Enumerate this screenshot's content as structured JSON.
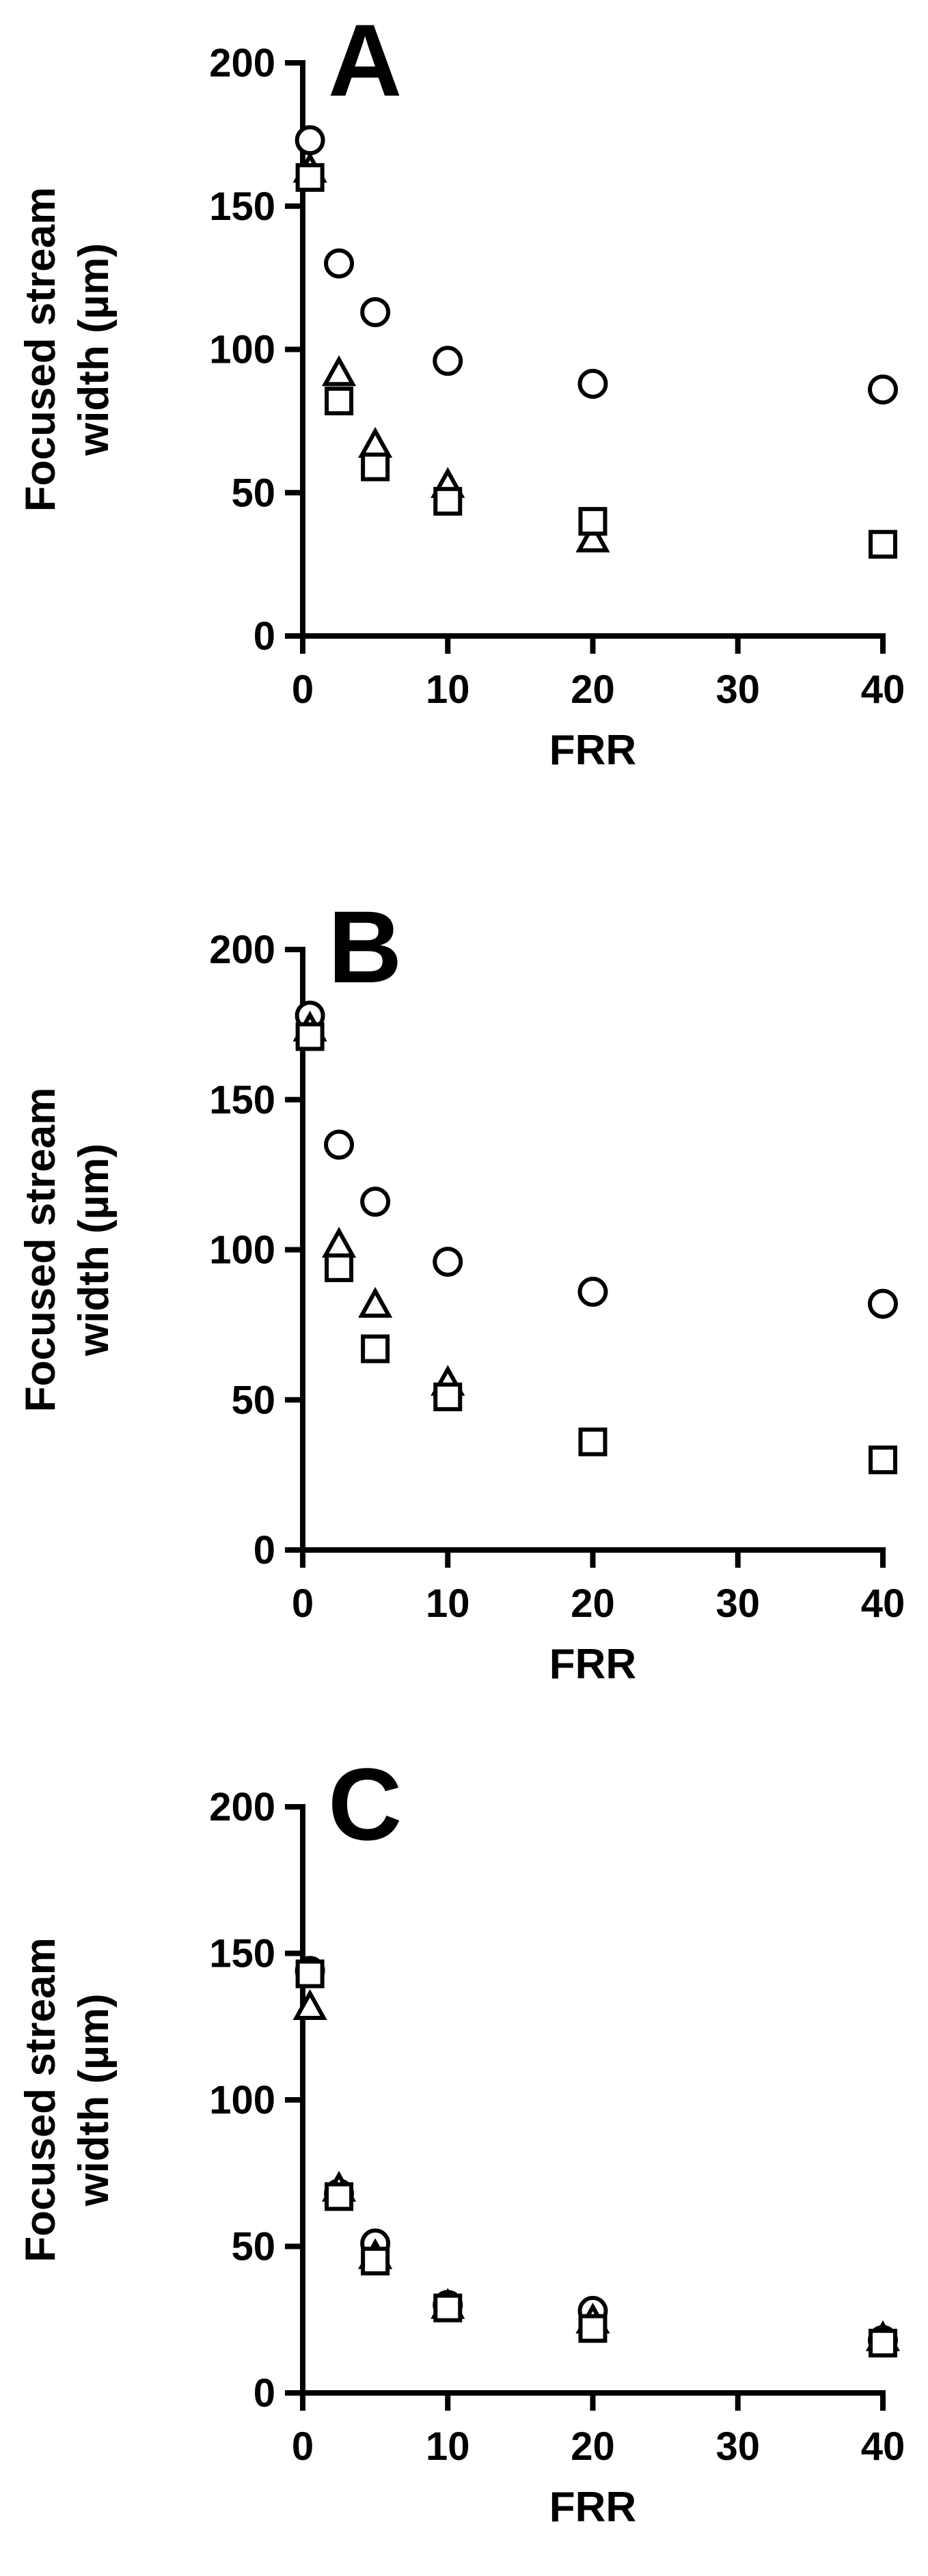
{
  "chart_data": [
    {
      "type": "scatter",
      "panel": "A",
      "ylabel_line1": "Focused stream",
      "ylabel_line2": "width (µm)",
      "xlabel": "FRR",
      "xlim": [
        0,
        40
      ],
      "ylim": [
        0,
        200
      ],
      "xticks": [
        0,
        10,
        20,
        30,
        40
      ],
      "yticks": [
        0,
        50,
        100,
        150,
        200
      ],
      "xtick_labels": [
        "0",
        "10",
        "20",
        "30",
        "40"
      ],
      "ytick_labels": [
        "0",
        "50",
        "100",
        "150",
        "200"
      ],
      "grid": false,
      "series": [
        {
          "marker": "circle",
          "points": [
            [
              0.5,
              173
            ],
            [
              2.5,
              130
            ],
            [
              5,
              113
            ],
            [
              10,
              96
            ],
            [
              20,
              88
            ],
            [
              40,
              86
            ]
          ]
        },
        {
          "marker": "triangle",
          "points": [
            [
              0.5,
              162
            ],
            [
              2.5,
              91
            ],
            [
              5,
              66
            ],
            [
              10,
              52
            ],
            [
              20,
              33
            ]
          ]
        },
        {
          "marker": "square",
          "points": [
            [
              0.5,
              160
            ],
            [
              2.5,
              82
            ],
            [
              5,
              59
            ],
            [
              10,
              47
            ],
            [
              20,
              40
            ],
            [
              40,
              32
            ]
          ]
        }
      ]
    },
    {
      "type": "scatter",
      "panel": "B",
      "ylabel_line1": "Focused stream",
      "ylabel_line2": "width (µm)",
      "xlabel": "FRR",
      "xlim": [
        0,
        40
      ],
      "ylim": [
        0,
        200
      ],
      "xticks": [
        0,
        10,
        20,
        30,
        40
      ],
      "yticks": [
        0,
        50,
        100,
        150,
        200
      ],
      "xtick_labels": [
        "0",
        "10",
        "20",
        "30",
        "40"
      ],
      "ytick_labels": [
        "0",
        "50",
        "100",
        "150",
        "200"
      ],
      "grid": false,
      "series": [
        {
          "marker": "circle",
          "points": [
            [
              0.5,
              178
            ],
            [
              2.5,
              135
            ],
            [
              5,
              116
            ],
            [
              10,
              96
            ],
            [
              20,
              86
            ],
            [
              40,
              82
            ]
          ]
        },
        {
          "marker": "triangle",
          "points": [
            [
              0.5,
              173
            ],
            [
              2.5,
              101
            ],
            [
              5,
              81
            ],
            [
              10,
              55
            ]
          ]
        },
        {
          "marker": "square",
          "points": [
            [
              0.5,
              171
            ],
            [
              2.5,
              94
            ],
            [
              5,
              67
            ],
            [
              10,
              51
            ],
            [
              20,
              36
            ],
            [
              40,
              30
            ]
          ]
        }
      ]
    },
    {
      "type": "scatter",
      "panel": "C",
      "ylabel_line1": "Focused stream",
      "ylabel_line2": "width (µm)",
      "xlabel": "FRR",
      "xlim": [
        0,
        40
      ],
      "ylim": [
        0,
        200
      ],
      "xticks": [
        0,
        10,
        20,
        30,
        40
      ],
      "yticks": [
        0,
        50,
        100,
        150,
        200
      ],
      "xtick_labels": [
        "0",
        "10",
        "20",
        "30",
        "40"
      ],
      "ytick_labels": [
        "0",
        "50",
        "100",
        "150",
        "200"
      ],
      "grid": false,
      "series": [
        {
          "marker": "circle",
          "points": [
            [
              0.5,
              144
            ],
            [
              2.5,
              68
            ],
            [
              5,
              51
            ],
            [
              10,
              30
            ],
            [
              20,
              28
            ],
            [
              40,
              18
            ]
          ]
        },
        {
          "marker": "triangle",
          "points": [
            [
              0.5,
              131
            ],
            [
              2.5,
              69
            ],
            [
              5,
              46
            ],
            [
              10,
              29
            ],
            [
              20,
              24
            ],
            [
              40,
              18
            ]
          ]
        },
        {
          "marker": "square",
          "points": [
            [
              0.5,
              143
            ],
            [
              2.5,
              67
            ],
            [
              5,
              45
            ],
            [
              10,
              29
            ],
            [
              20,
              22
            ],
            [
              40,
              17
            ]
          ]
        }
      ]
    }
  ]
}
